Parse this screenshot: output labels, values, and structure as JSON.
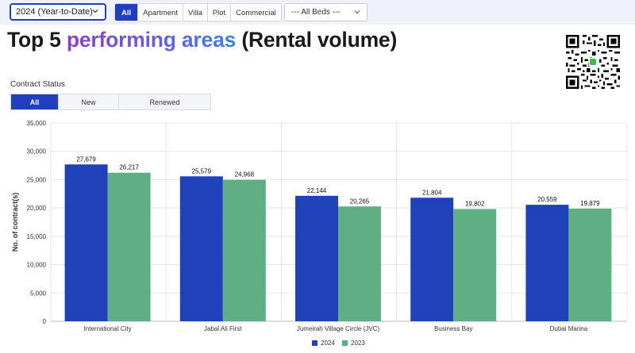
{
  "filters": {
    "period": "2024 (Year-to-Date)",
    "property_types": [
      "All",
      "Apartment",
      "Villa",
      "Plot",
      "Commercial"
    ],
    "active_type": "All",
    "beds": "--- All Beds ---"
  },
  "heading": {
    "part1": "Top 5 ",
    "highlight": "performing areas",
    "part2": " (Rental volume)"
  },
  "contract_status": {
    "label": "Contract Status",
    "options": [
      "All",
      "New",
      "Renewed"
    ],
    "active": "All"
  },
  "colors": {
    "accent": "#1f3fbf",
    "series_2024": "#1f41b9",
    "series_2023": "#5fae84"
  },
  "chart_data": {
    "type": "bar",
    "categories": [
      "International City",
      "Jabal Ali First",
      "Jumeirah Village Circle (JVC)",
      "Business Bay",
      "Dubai Marina"
    ],
    "series": [
      {
        "name": "2024",
        "values": [
          27679,
          25579,
          22144,
          21804,
          20559
        ],
        "labels": [
          "27,679",
          "25,579",
          "22,144",
          "21,804",
          "20,559"
        ]
      },
      {
        "name": "2023",
        "values": [
          26217,
          24968,
          20265,
          19802,
          19879
        ],
        "labels": [
          "26,217",
          "24,968",
          "20,265",
          "19,802",
          "19,879"
        ]
      }
    ],
    "ylabel": "No. of contract(s)",
    "ylim": [
      0,
      35000
    ],
    "yticks": [
      0,
      5000,
      10000,
      15000,
      20000,
      25000,
      30000,
      35000
    ],
    "ytick_labels": [
      "0",
      "5,000",
      "10,000",
      "15,000",
      "20,000",
      "25,000",
      "30,000",
      "35,000"
    ],
    "grid": true,
    "legend": "bottom-center"
  }
}
